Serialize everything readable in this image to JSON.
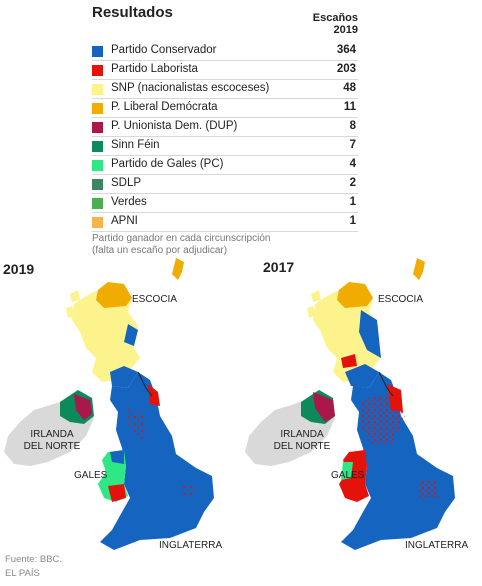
{
  "results": {
    "title": "Resultados",
    "header_line1": "Escaños",
    "header_line2": "2019",
    "parties": [
      {
        "name": "Partido Conservador",
        "seats": "364",
        "color": "#1565c0"
      },
      {
        "name": "Partido Laborista",
        "seats": "203",
        "color": "#e3120b"
      },
      {
        "name": "SNP (nacionalistas escoceses)",
        "seats": "48",
        "color": "#fdf38c"
      },
      {
        "name": "P. Liberal Demócrata",
        "seats": "11",
        "color": "#f0ac00"
      },
      {
        "name": "P. Unionista Dem. (DUP)",
        "seats": "8",
        "color": "#a9174b"
      },
      {
        "name": "Sinn Féin",
        "seats": "7",
        "color": "#0c8a5c"
      },
      {
        "name": "Partido de Gales (PC)",
        "seats": "4",
        "color": "#2ee886"
      },
      {
        "name": "SDLP",
        "seats": "2",
        "color": "#3f8463"
      },
      {
        "name": "Verdes",
        "seats": "1",
        "color": "#4caf50"
      },
      {
        "name": "APNI",
        "seats": "1",
        "color": "#f9b34c"
      }
    ],
    "note_line1": "Partido ganador en cada circunscripción",
    "note_line2": "(falta un escaño por adjudicar)"
  },
  "maps": [
    {
      "year": "2019",
      "scotland": "ESCOCIA",
      "ni_line1": "IRLANDA",
      "ni_line2": "DEL NORTE",
      "wales": "GALES",
      "england": "INGLATERRA"
    },
    {
      "year": "2017",
      "scotland": "ESCOCIA",
      "ni_line1": "IRLANDA",
      "ni_line2": "DEL NORTE",
      "wales": "GALES",
      "england": "INGLATERRA"
    }
  ],
  "footer": {
    "source": "Fuente: BBC.",
    "credit": "EL PAÍS"
  }
}
